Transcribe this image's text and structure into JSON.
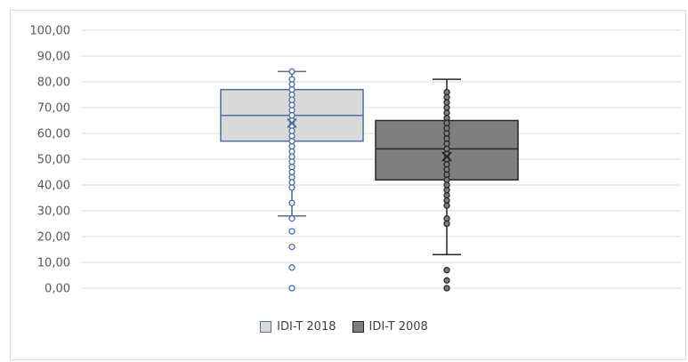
{
  "chart_data": {
    "type": "boxplot",
    "title": "",
    "xlabel": "",
    "ylabel": "",
    "ylim": [
      0,
      100
    ],
    "yticks": [
      "0,00",
      "10,00",
      "20,00",
      "30,00",
      "40,00",
      "50,00",
      "60,00",
      "70,00",
      "80,00",
      "90,00",
      "100,00"
    ],
    "grid": true,
    "legend_position": "bottom",
    "series": [
      {
        "name": "IDI-T 2018",
        "fill": "#d9d9d9",
        "stroke": "#4f6fa0",
        "whisker_low": 28,
        "q1": 57,
        "median": 67,
        "q3": 77,
        "whisker_high": 84,
        "mean": 64,
        "points": [
          84,
          81,
          79,
          77,
          75,
          73,
          71,
          69,
          67,
          65,
          63,
          61,
          59,
          57,
          55,
          53,
          51,
          49,
          47,
          45,
          43,
          41,
          39,
          33,
          27,
          22,
          16,
          8,
          0
        ]
      },
      {
        "name": "IDI-T 2008",
        "fill": "#7f7f7f",
        "stroke": "#262626",
        "whisker_low": 13,
        "q1": 42,
        "median": 54,
        "q3": 65,
        "whisker_high": 81,
        "mean": 51,
        "points": [
          76,
          74,
          72,
          70,
          68,
          66,
          64,
          62,
          60,
          58,
          56,
          54,
          52,
          50,
          48,
          46,
          44,
          42,
          40,
          38,
          36,
          34,
          32,
          27,
          25,
          7,
          3,
          0
        ]
      }
    ]
  }
}
